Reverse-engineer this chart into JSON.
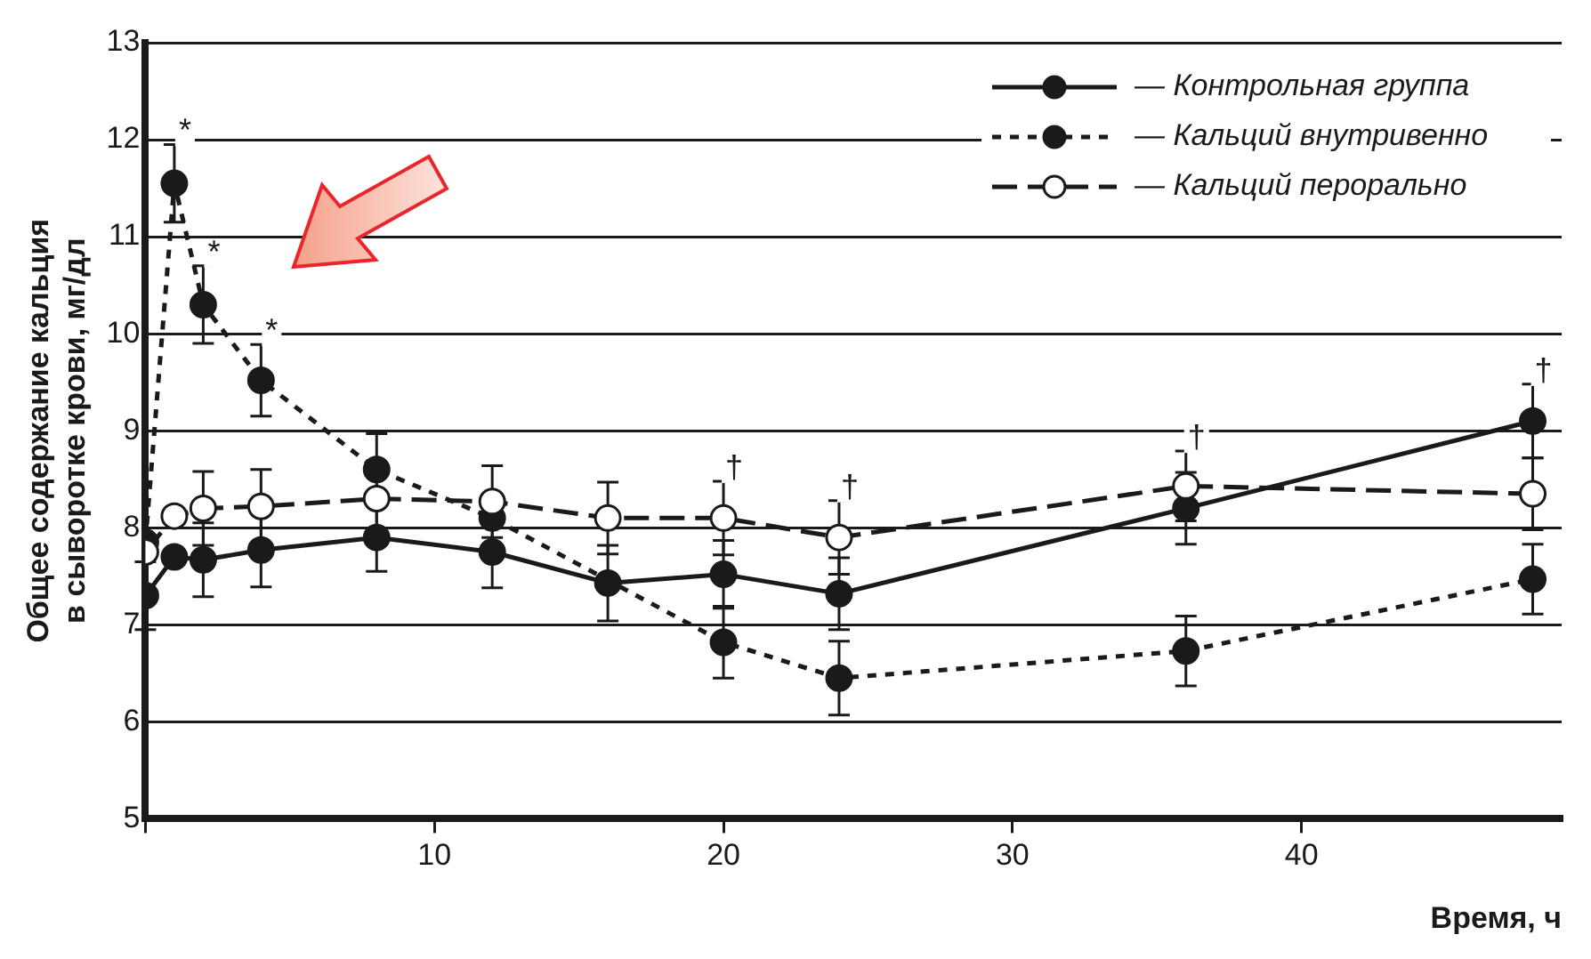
{
  "chart_data": {
    "type": "line",
    "xlabel": "Время, ч",
    "ylabel": "Общее содержание кальция\nв сыворотке крови, мг/дл",
    "x": [
      0,
      1,
      2,
      4,
      8,
      12,
      16,
      20,
      24,
      36,
      48
    ],
    "xlim": [
      0,
      49
    ],
    "xticks": [
      {
        "value": 0,
        "label": null
      },
      10,
      20,
      30,
      40
    ],
    "ylim": [
      5,
      13
    ],
    "yticks": [
      5,
      6,
      7,
      8,
      9,
      10,
      11,
      12,
      13
    ],
    "grid": "y",
    "legend": "top right",
    "marker": "circle",
    "series": [
      {
        "name": "— Контрольная группа",
        "color": "#1a1a1a",
        "line_style": "solid",
        "values": [
          7.3,
          7.7,
          7.67,
          7.77,
          7.9,
          7.75,
          7.43,
          7.52,
          7.32,
          8.2,
          9.1
        ],
        "errors": [
          0.35,
          null,
          0.38,
          0.38,
          0.35,
          0.37,
          0.39,
          0.35,
          0.37,
          0.37,
          0.38
        ]
      },
      {
        "name": "— Кальций внутривенно",
        "color": "#1a1a1a",
        "line_style": "dotted",
        "x": [
          0,
          1,
          2,
          4,
          8,
          12,
          20,
          24,
          36,
          48
        ],
        "values": [
          7.85,
          11.55,
          10.3,
          9.52,
          8.6,
          8.1,
          6.82,
          6.45,
          6.73,
          7.47
        ],
        "errors": [
          null,
          0.4,
          0.4,
          0.37,
          0.37,
          null,
          0.37,
          0.38,
          0.36,
          0.36
        ]
      },
      {
        "name": "— Кальций перорально",
        "color": "#1a1a1a",
        "line_style": "dashed",
        "values": [
          7.75,
          8.12,
          8.2,
          8.22,
          8.3,
          8.27,
          8.1,
          8.1,
          7.9,
          8.43,
          8.35
        ],
        "errors": [
          null,
          null,
          0.38,
          0.38,
          0.35,
          0.37,
          0.37,
          0.38,
          0.38,
          0.36,
          0.37
        ]
      }
    ],
    "annotations": [
      {
        "text": "*",
        "x": 1,
        "y": 11.55
      },
      {
        "text": "*",
        "x": 2,
        "y": 10.3
      },
      {
        "text": "*",
        "x": 4,
        "y": 9.52
      },
      {
        "text": "†",
        "x": 20,
        "y": 8.1
      },
      {
        "text": "†",
        "x": 24,
        "y": 7.9
      },
      {
        "text": "†",
        "x": 36,
        "y": 8.43
      },
      {
        "text": "†",
        "x": 48,
        "y": 9.1
      }
    ]
  }
}
